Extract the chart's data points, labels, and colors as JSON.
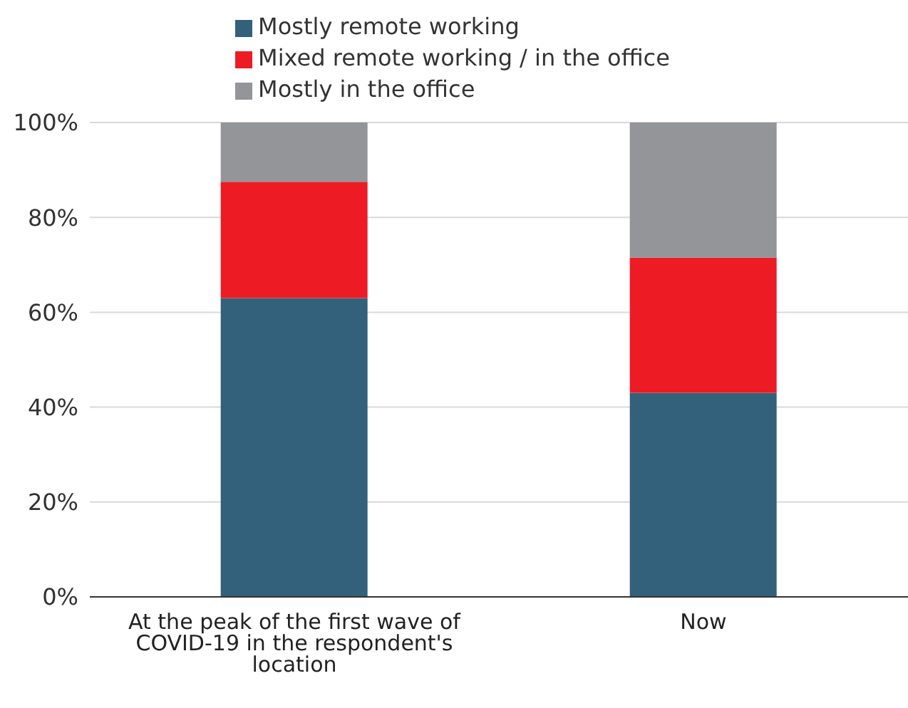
{
  "chart_data": {
    "type": "bar",
    "stacked": true,
    "categories": [
      "At the peak of the first wave of COVID-19 in the respondent's location",
      "Now"
    ],
    "series": [
      {
        "name": "Mostly remote working",
        "color": "#33617b",
        "values": [
          63,
          43
        ]
      },
      {
        "name": "Mixed remote working / in the office",
        "color": "#ed1c24",
        "values": [
          24.5,
          28.5
        ]
      },
      {
        "name": "Mostly in the office",
        "color": "#939598",
        "values": [
          12.5,
          28.5
        ]
      }
    ],
    "ylim": [
      0,
      100
    ],
    "yticks": [
      {
        "value": 0,
        "label": "0%"
      },
      {
        "value": 20,
        "label": "20%"
      },
      {
        "value": 40,
        "label": "40%"
      },
      {
        "value": 60,
        "label": "60%"
      },
      {
        "value": 80,
        "label": "80%"
      },
      {
        "value": 100,
        "label": "100%"
      }
    ],
    "grid": "y",
    "legend": "top"
  }
}
